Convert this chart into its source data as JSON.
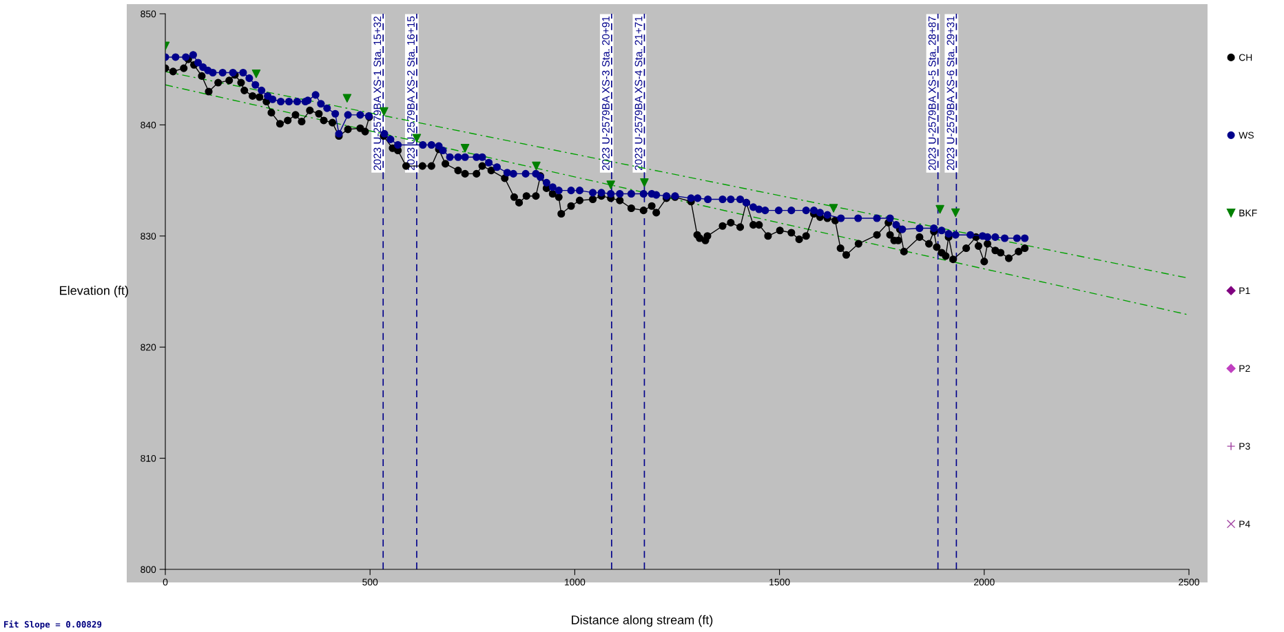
{
  "chart_data": {
    "type": "line",
    "xlabel": "Distance along stream (ft)",
    "ylabel": "Elevation (ft)",
    "xlim": [
      0,
      2500
    ],
    "ylim": [
      800,
      850
    ],
    "xticks": [
      0,
      500,
      1000,
      1500,
      2000,
      2500
    ],
    "yticks": [
      800,
      810,
      820,
      830,
      840,
      850
    ],
    "grid": false,
    "legend": "right",
    "series": [
      {
        "name": "CH",
        "color": "#000000",
        "marker": "circle",
        "line_style": "solid",
        "x": [
          0,
          19,
          45,
          56,
          70,
          89,
          106,
          129,
          156,
          170,
          185,
          193,
          213,
          230,
          247,
          259,
          280,
          299,
          318,
          333,
          353,
          375,
          387,
          408,
          424,
          446,
          476,
          488,
          498,
          515,
          533,
          555,
          568,
          588,
          628,
          650,
          668,
          684,
          715,
          732,
          760,
          774,
          796,
          829,
          852,
          864,
          882,
          905,
          916,
          931,
          946,
          961,
          967,
          991,
          1012,
          1044,
          1065,
          1088,
          1110,
          1138,
          1168,
          1188,
          1199,
          1224,
          1245,
          1284,
          1299,
          1305,
          1319,
          1324,
          1361,
          1381,
          1404,
          1419,
          1436,
          1450,
          1472,
          1501,
          1529,
          1548,
          1565,
          1584,
          1599,
          1617,
          1636,
          1649,
          1663,
          1693,
          1738,
          1766,
          1770,
          1780,
          1790,
          1794,
          1804,
          1842,
          1865,
          1877,
          1884,
          1896,
          1906,
          1913,
          1924,
          1956,
          1980,
          1986,
          2000,
          2008,
          2027,
          2040,
          2060,
          2084,
          2099
        ],
        "values": [
          845.1,
          844.8,
          845.1,
          845.9,
          845.4,
          844.4,
          843.0,
          843.8,
          844.0,
          844.5,
          843.8,
          843.1,
          842.6,
          842.5,
          842.1,
          841.1,
          840.1,
          840.4,
          840.9,
          840.3,
          841.3,
          841.0,
          840.4,
          840.2,
          839.0,
          839.6,
          839.7,
          839.4,
          840.7,
          null,
          839.0,
          837.9,
          837.7,
          836.3,
          836.3,
          836.3,
          837.8,
          836.5,
          835.9,
          835.6,
          835.6,
          836.3,
          835.9,
          835.2,
          833.5,
          833.0,
          833.6,
          833.6,
          835.4,
          834.3,
          833.8,
          833.5,
          832.0,
          832.7,
          833.2,
          833.3,
          833.6,
          833.4,
          833.2,
          832.5,
          832.3,
          832.7,
          832.1,
          833.4,
          833.5,
          833.1,
          830.1,
          829.8,
          829.6,
          830.0,
          830.9,
          831.2,
          830.8,
          833.0,
          831.0,
          831.0,
          830.0,
          830.5,
          830.3,
          829.7,
          830.0,
          832.0,
          831.7,
          831.6,
          831.4,
          828.9,
          828.3,
          829.3,
          830.1,
          831.2,
          830.1,
          829.6,
          829.6,
          830.6,
          828.6,
          829.9,
          829.3,
          830.4,
          829.0,
          828.5,
          828.2,
          829.9,
          827.9,
          828.9,
          829.9,
          829.1,
          827.7,
          829.3,
          828.7,
          828.5,
          828.0,
          828.6,
          828.9
        ]
      },
      {
        "name": "WS",
        "color": "#00008b",
        "marker": "circle",
        "line_style": "solid",
        "x": [
          0,
          25,
          50,
          68,
          80,
          92,
          104,
          116,
          140,
          165,
          190,
          205,
          220,
          235,
          250,
          262,
          282,
          302,
          322,
          342,
          348,
          367,
          380,
          395,
          415,
          424,
          446,
          476,
          497,
          515,
          535,
          550,
          568,
          629,
          650,
          668,
          678,
          695,
          715,
          732,
          760,
          774,
          790,
          810,
          835,
          850,
          880,
          905,
          916,
          931,
          946,
          961,
          991,
          1012,
          1044,
          1065,
          1088,
          1110,
          1138,
          1168,
          1188,
          1199,
          1224,
          1245,
          1284,
          1300,
          1325,
          1361,
          1381,
          1404,
          1419,
          1436,
          1450,
          1465,
          1498,
          1529,
          1565,
          1584,
          1599,
          1617,
          1650,
          1692,
          1738,
          1770,
          1785,
          1800,
          1842,
          1877,
          1896,
          1913,
          1930,
          1966,
          1996,
          2008,
          2027,
          2050,
          2080,
          2099
        ],
        "values": [
          846.1,
          846.1,
          846.1,
          846.3,
          845.6,
          845.2,
          844.9,
          844.7,
          844.7,
          844.7,
          844.7,
          844.2,
          843.6,
          843.1,
          842.6,
          842.3,
          842.1,
          842.1,
          842.1,
          842.1,
          842.2,
          842.7,
          841.9,
          841.5,
          841.0,
          839.2,
          840.9,
          840.9,
          840.8,
          null,
          839.2,
          838.7,
          838.2,
          838.2,
          838.2,
          838.1,
          837.7,
          837.1,
          837.1,
          837.1,
          837.1,
          837.1,
          836.6,
          836.2,
          835.7,
          835.6,
          835.6,
          835.6,
          835.3,
          834.8,
          834.4,
          834.1,
          834.1,
          834.1,
          833.9,
          833.9,
          833.8,
          833.8,
          833.8,
          833.8,
          833.8,
          833.7,
          833.6,
          833.6,
          833.4,
          833.4,
          833.3,
          833.3,
          833.3,
          833.3,
          833.0,
          832.6,
          832.4,
          832.3,
          832.3,
          832.3,
          832.3,
          832.3,
          832.1,
          831.9,
          831.6,
          831.6,
          831.6,
          831.6,
          831.0,
          830.6,
          830.7,
          830.7,
          830.5,
          830.2,
          830.1,
          830.1,
          830.0,
          829.9,
          829.9,
          829.8,
          829.8,
          829.8
        ]
      },
      {
        "name": "BKF",
        "type": "scatter",
        "color": "#008000",
        "marker": "triangle",
        "x": [
          0,
          222,
          444,
          534,
          614,
          732,
          906,
          1088,
          1170,
          1632,
          1892,
          1930
        ],
        "values": [
          847.1,
          844.6,
          842.4,
          841.2,
          838.8,
          837.9,
          836.3,
          834.6,
          834.8,
          832.5,
          832.4,
          832.1
        ]
      },
      {
        "name": "P1",
        "type": "scatter",
        "color": "#800080",
        "marker": "diamond"
      },
      {
        "name": "P2",
        "type": "scatter",
        "color": "#c040c0",
        "marker": "diamond"
      },
      {
        "name": "P3",
        "type": "scatter",
        "color": "#a040a0",
        "marker": "cross"
      },
      {
        "name": "P4",
        "type": "scatter",
        "color": "#a040a0",
        "marker": "x"
      },
      {
        "color": "#00a000",
        "marker": "none",
        "line_style": "dashed",
        "x": [
          0,
          2500
        ],
        "values": [
          843.6,
          822.9
        ]
      },
      {
        "color": "#00a000",
        "marker": "none",
        "line_style": "dashed",
        "x": [
          0,
          2500
        ],
        "values": [
          844.8,
          826.2
        ]
      }
    ],
    "ref_lines": [
      {
        "axis": "x",
        "value": 532,
        "label": "2023 U-2579BA XS-1 Sta. 15+32",
        "color": "#00008b",
        "line_style": "dashed"
      },
      {
        "axis": "x",
        "value": 614,
        "label": "2023 U-2579BA XS-2 Sta. 16+15",
        "color": "#00008b",
        "line_style": "dashed"
      },
      {
        "axis": "x",
        "value": 1090,
        "label": "2023 U-2579BA XS-3 Sta. 20+91",
        "color": "#00008b",
        "line_style": "dashed"
      },
      {
        "axis": "x",
        "value": 1170,
        "label": "2023 U-2579BA XS-4 Sta. 21+71",
        "color": "#00008b",
        "line_style": "dashed"
      },
      {
        "axis": "x",
        "value": 1887,
        "label": "2023 U-2579BA XS-5 Sta. 28+87",
        "color": "#00008b",
        "line_style": "dashed"
      },
      {
        "axis": "x",
        "value": 1932,
        "label": "2023 U-2579BA XS-6 Sta. 29+31",
        "color": "#00008b",
        "line_style": "dashed"
      }
    ],
    "annotations": [
      "Fit Slope = 0.00829"
    ]
  }
}
